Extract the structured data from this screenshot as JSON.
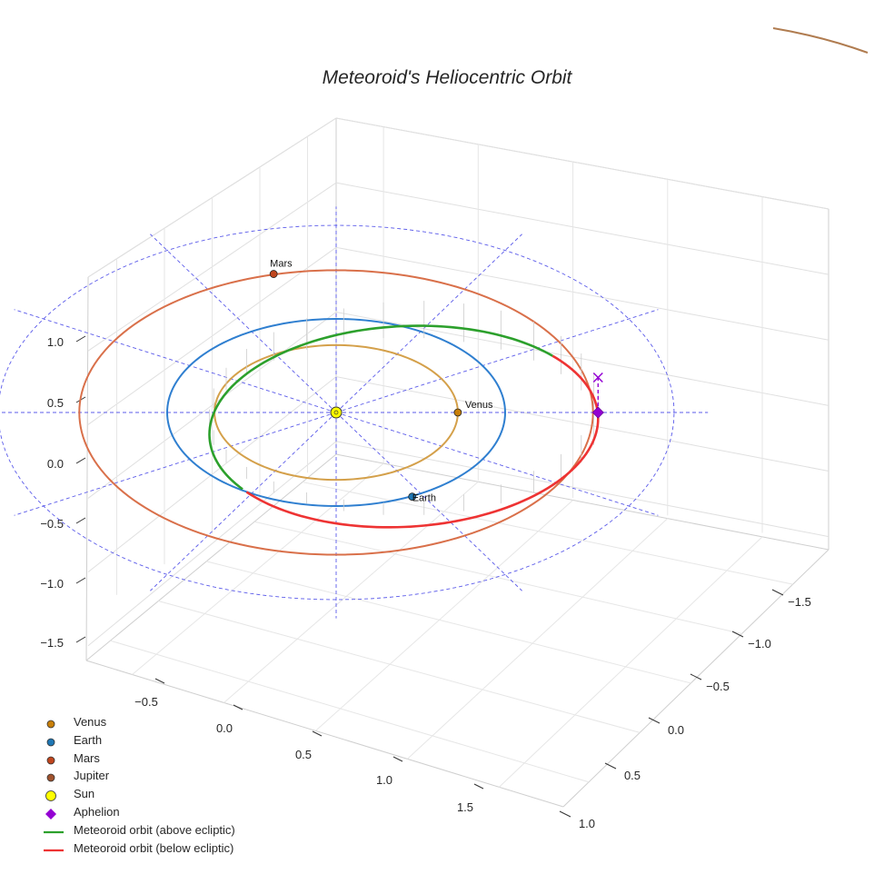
{
  "chart_data": {
    "type": "scatter",
    "projection": "3d",
    "title": "Meteoroid's Heliocentric Orbit",
    "xlabel": "",
    "ylabel": "",
    "zlabel": "",
    "xlim": [
      -0.8,
      1.9
    ],
    "ylim": [
      -1.7,
      1.1
    ],
    "zlim": [
      -1.6,
      1.2
    ],
    "x_ticks": [
      "−0.5",
      "0.0",
      "0.5",
      "1.0",
      "1.5"
    ],
    "y_ticks": [
      "−1.5",
      "−1.0",
      "−0.5",
      "0.0",
      "0.5",
      "1.0"
    ],
    "z_ticks": [
      "−1.5",
      "−1.0",
      "−0.5",
      "0.0",
      "0.5",
      "1.0"
    ],
    "grid": true,
    "legend_position": "lower-left",
    "planets": [
      {
        "name": "Venus",
        "label": "Venus",
        "a": 0.72,
        "color": "#d4a04a",
        "position": [
          0.72,
          0.0,
          0.0
        ],
        "marker_color": "#c87f0a"
      },
      {
        "name": "Earth",
        "label": "Earth",
        "a": 1.0,
        "color": "#2f7fd0",
        "position": [
          0.45,
          -0.9,
          0.0
        ],
        "marker_color": "#1f77b4"
      },
      {
        "name": "Mars",
        "label": "Mars",
        "a": 1.52,
        "color": "#d9704a",
        "position": [
          -0.37,
          1.48,
          0.0
        ],
        "marker_color": "#c0461e"
      },
      {
        "name": "Jupiter",
        "label": "",
        "a": 5.2,
        "color": "#b07c50",
        "marker_color": "#a0522d"
      }
    ],
    "sun": {
      "name": "Sun",
      "position": [
        0,
        0,
        0
      ],
      "color": "#ffff00"
    },
    "aphelion": {
      "name": "Aphelion",
      "position": [
        1.55,
        0.0,
        0.0
      ],
      "projected_marker": [
        1.55,
        0.0,
        0.35
      ],
      "color": "#9400d3"
    },
    "meteoroid_orbit": {
      "focus_offset": [
        0.4,
        -0.15
      ],
      "semi_major_axis": 1.15,
      "semi_minor_axis": 0.95,
      "series": [
        {
          "name": "Meteoroid orbit (above ecliptic)",
          "color": "#2ca02c"
        },
        {
          "name": "Meteoroid orbit (below ecliptic)",
          "color": "#ee3333"
        }
      ]
    },
    "reference_circles_au": [
      1.0,
      2.0
    ],
    "radial_lines_deg": [
      0,
      30,
      60,
      90,
      120,
      150,
      180,
      210,
      240,
      270,
      300,
      330
    ]
  },
  "legend": {
    "items": [
      {
        "label": "Venus",
        "kind": "dot",
        "color": "#c87f0a"
      },
      {
        "label": "Earth",
        "kind": "dot",
        "color": "#1f77b4"
      },
      {
        "label": "Mars",
        "kind": "dot",
        "color": "#c0461e"
      },
      {
        "label": "Jupiter",
        "kind": "dot",
        "color": "#a0522d"
      },
      {
        "label": "Sun",
        "kind": "bigdot",
        "color": "#ffff00"
      },
      {
        "label": "Aphelion",
        "kind": "diamond",
        "color": "#9400d3"
      },
      {
        "label": "Meteoroid orbit (above ecliptic)",
        "kind": "line",
        "color": "#2ca02c"
      },
      {
        "label": "Meteoroid orbit (below ecliptic)",
        "kind": "line",
        "color": "#ee3333"
      }
    ]
  }
}
